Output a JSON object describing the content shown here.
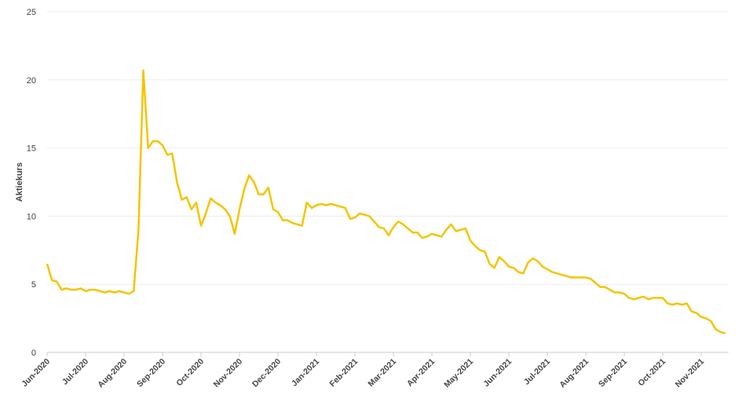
{
  "chart_data": {
    "type": "line",
    "y_label": "Aktiekurs",
    "color": "#f5c400",
    "grid": true,
    "ylim": [
      0,
      25
    ],
    "yticks": [
      0,
      5,
      10,
      15,
      20,
      25
    ],
    "categories": [
      "Jun-2020",
      null,
      null,
      null,
      null,
      null,
      null,
      null,
      "Jul-2020",
      null,
      null,
      null,
      null,
      null,
      null,
      null,
      "Aug-2020",
      null,
      null,
      null,
      null,
      null,
      null,
      null,
      "Sep-2020",
      null,
      null,
      null,
      null,
      null,
      null,
      null,
      "Oct-2020",
      null,
      null,
      null,
      null,
      null,
      null,
      null,
      "Nov-2020",
      null,
      null,
      null,
      null,
      null,
      null,
      null,
      "Dec-2020",
      null,
      null,
      null,
      null,
      null,
      null,
      null,
      "Jan-2021",
      null,
      null,
      null,
      null,
      null,
      null,
      null,
      "Feb-2021",
      null,
      null,
      null,
      null,
      null,
      null,
      null,
      "Mar-2021",
      null,
      null,
      null,
      null,
      null,
      null,
      null,
      "Apr-2021",
      null,
      null,
      null,
      null,
      null,
      null,
      null,
      "May-2021",
      null,
      null,
      null,
      null,
      null,
      null,
      null,
      "Jun-2021",
      null,
      null,
      null,
      null,
      null,
      null,
      null,
      "Jul-2021",
      null,
      null,
      null,
      null,
      null,
      null,
      null,
      "Aug-2021",
      null,
      null,
      null,
      null,
      null,
      null,
      null,
      "Sep-2021",
      null,
      null,
      null,
      null,
      null,
      null,
      null,
      "Oct-2021",
      null,
      null,
      null,
      null,
      null,
      null,
      null,
      "Nov-2021",
      null,
      null,
      null,
      null,
      null
    ],
    "values": [
      6.5,
      5.3,
      5.2,
      4.6,
      4.7,
      4.6,
      4.6,
      4.7,
      4.5,
      4.6,
      4.6,
      4.5,
      4.4,
      4.5,
      4.4,
      4.5,
      4.4,
      4.3,
      4.5,
      9.0,
      20.7,
      15.0,
      15.5,
      15.5,
      15.2,
      14.5,
      14.6,
      12.5,
      11.2,
      11.4,
      10.5,
      11.0,
      9.3,
      10.2,
      11.3,
      11.0,
      10.8,
      10.5,
      10.0,
      8.7,
      10.5,
      12.0,
      13.0,
      12.5,
      11.6,
      11.6,
      12.1,
      10.5,
      10.3,
      9.7,
      9.7,
      9.5,
      9.4,
      9.3,
      11.0,
      10.6,
      10.8,
      10.9,
      10.8,
      10.9,
      10.8,
      10.7,
      10.6,
      9.8,
      9.9,
      10.2,
      10.1,
      10.0,
      9.6,
      9.2,
      9.1,
      8.6,
      9.2,
      9.6,
      9.4,
      9.1,
      8.8,
      8.8,
      8.4,
      8.5,
      8.7,
      8.6,
      8.5,
      9.0,
      9.4,
      8.9,
      9.0,
      9.1,
      8.2,
      7.8,
      7.5,
      7.4,
      6.5,
      6.2,
      7.0,
      6.7,
      6.3,
      6.2,
      5.9,
      5.8,
      6.6,
      6.9,
      6.7,
      6.3,
      6.1,
      5.9,
      5.8,
      5.7,
      5.6,
      5.5,
      5.5,
      5.5,
      5.5,
      5.4,
      5.1,
      4.8,
      4.8,
      4.6,
      4.4,
      4.4,
      4.3,
      4.0,
      3.9,
      4.0,
      4.1,
      3.9,
      4.0,
      4.0,
      4.0,
      3.6,
      3.5,
      3.6,
      3.5,
      3.6,
      3.0,
      2.9,
      2.6,
      2.5,
      2.3,
      1.7,
      1.5,
      1.4
    ]
  }
}
